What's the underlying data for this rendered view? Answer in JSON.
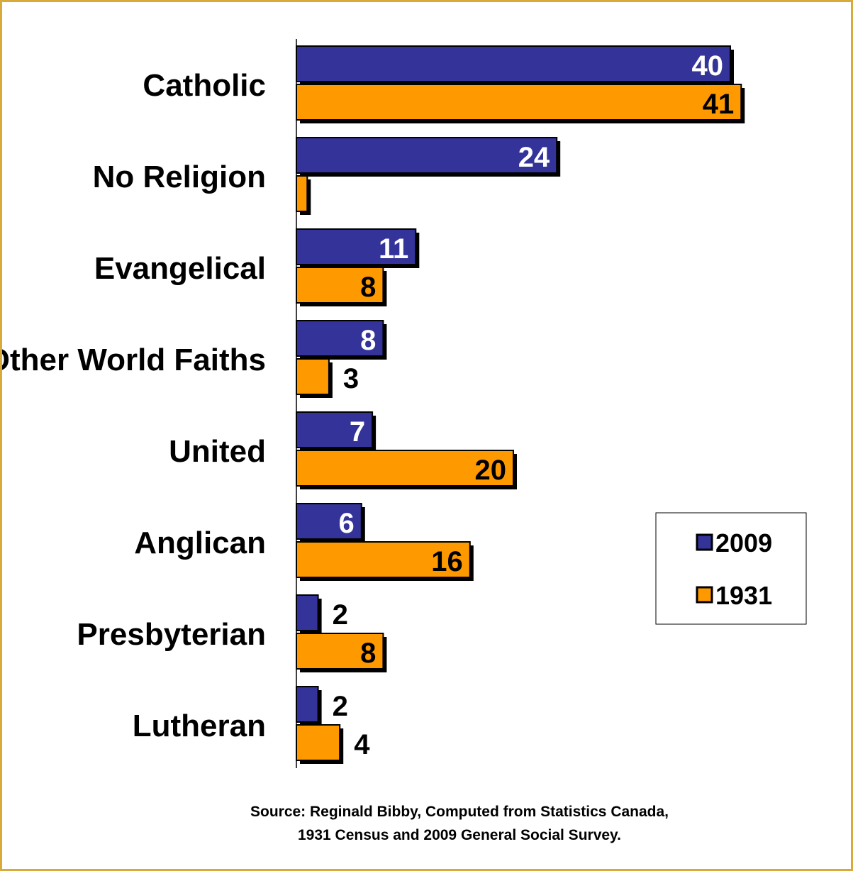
{
  "chart_data": {
    "type": "bar",
    "orientation": "horizontal",
    "categories": [
      "Catholic",
      "No Religion",
      "Evangelical",
      "Other World Faiths",
      "United",
      "Anglican",
      "Presbyterian",
      "Lutheran"
    ],
    "series": [
      {
        "name": "2009",
        "color": "#333399",
        "values": [
          40,
          24,
          11,
          8,
          7,
          6,
          2,
          2
        ],
        "labels": [
          "40",
          "24",
          "11",
          "8",
          "7",
          "6",
          "2",
          "2"
        ]
      },
      {
        "name": "1931",
        "color": "#ff9900",
        "values": [
          41,
          1,
          8,
          3,
          20,
          16,
          8,
          4
        ],
        "labels": [
          "41",
          "",
          "8",
          "3",
          "20",
          "16",
          "8",
          "4"
        ]
      }
    ],
    "xlim": [
      0,
      45
    ],
    "grid": false,
    "legend_position": "right"
  },
  "source": {
    "line1": "Source:  Reginald Bibby, Computed from Statistics Canada,",
    "line2": "1931 Census and 2009 General Social Survey."
  }
}
